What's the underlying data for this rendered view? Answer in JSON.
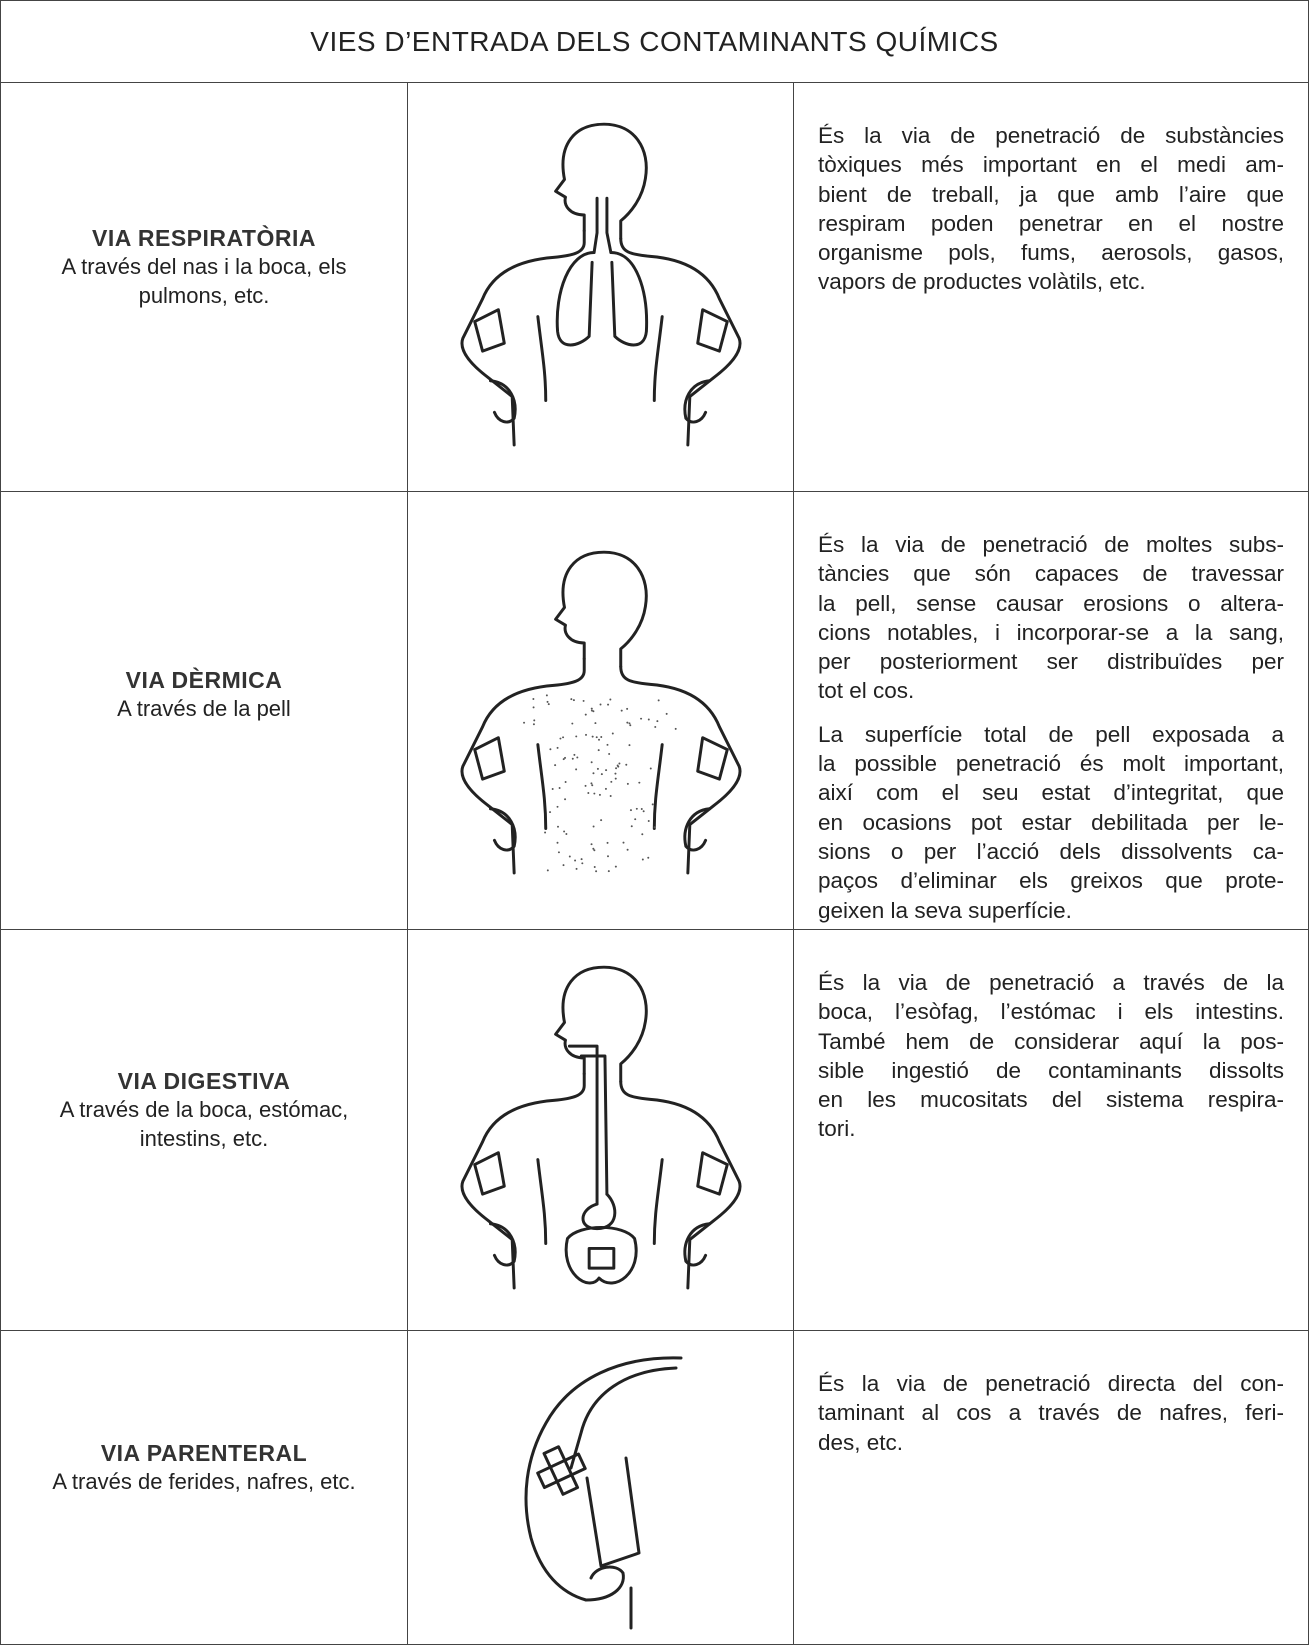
{
  "title": "VIES D’ENTRADA DELS CONTAMINANTS QUÍMICS",
  "rows": [
    {
      "name": "VIA RESPIRATÒRIA",
      "subtitle": "A través del nas i la boca, els pulmons, etc.",
      "description": [
        [
          "És la via de penetració de substàncies",
          "tòxiques més important en el medi am-",
          "bient de treball, ja que amb l’aire que",
          "respiram poden penetrar en el nostre",
          "organisme pols, fums, aerosols, gasos,",
          "vapors de productes volàtils, etc."
        ]
      ]
    },
    {
      "name": "VIA DÈRMICA",
      "subtitle": "A través de la pell",
      "description": [
        [
          "És la via de penetració de moltes subs-",
          "tàncies que són capaces de travessar",
          "la pell, sense causar erosions o altera-",
          "cions notables, i incorporar-se a la sang,",
          "per posteriorment ser distribuïdes per",
          "tot el cos."
        ],
        [
          "La superfície total de pell exposada a",
          "la possible penetració és molt important,",
          "així com el seu estat d’integritat, que",
          "en ocasions pot estar debilitada per le-",
          "sions o per l’acció dels dissolvents ca-",
          "paços d’eliminar els greixos que prote-",
          "geixen la seva superfície."
        ]
      ]
    },
    {
      "name": "VIA DIGESTIVA",
      "subtitle": "A través de la boca, estómac, intestins, etc.",
      "description": [
        [
          "És la via de penetració a través de la",
          "boca, l’esòfag, l’estómac i els intestins.",
          "També hem de considerar aquí la pos-",
          "sible ingestió de contaminants dissolts",
          "en les mucositats del sistema respira-",
          "tori."
        ]
      ]
    },
    {
      "name": "VIA PARENTERAL",
      "subtitle": "A través de ferides, nafres, etc.",
      "description": [
        [
          "És la via de penetració directa del con-",
          "taminant al cos a través de nafres, feri-",
          "des, etc."
        ]
      ]
    }
  ]
}
